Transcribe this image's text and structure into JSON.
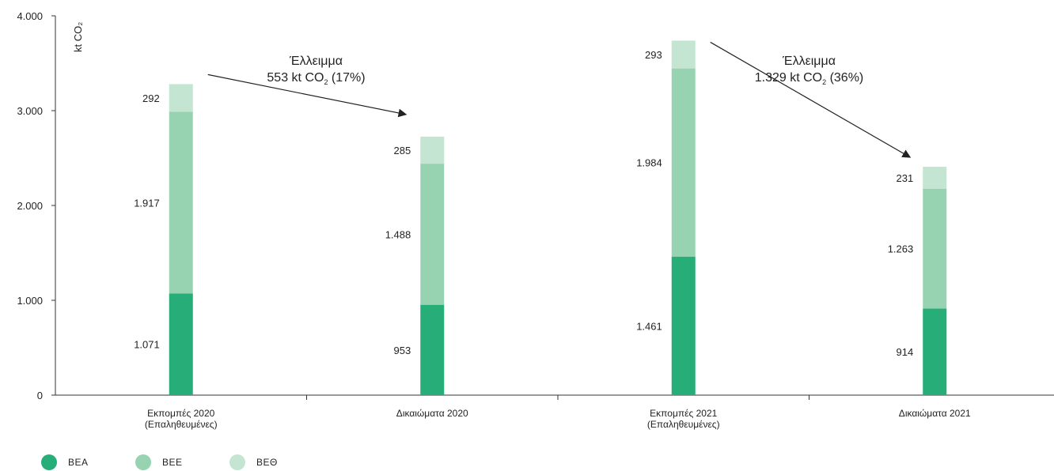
{
  "chart_data": {
    "type": "bar",
    "stacked": true,
    "ylabel": "kt CO₂",
    "ylim": [
      0,
      4000
    ],
    "yticks": [
      "0",
      "1.000",
      "2.000",
      "3.000",
      "4.000"
    ],
    "ytick_values": [
      0,
      1000,
      2000,
      3000,
      4000
    ],
    "categories": [
      [
        "Εκπομπές 2020",
        "(Επαληθευμένες)"
      ],
      [
        "Δικαιώματα 2020"
      ],
      [
        "Εκπομπές 2021",
        "(Επαληθευμένες)"
      ],
      [
        "Δικαιώματα 2021"
      ]
    ],
    "series": [
      {
        "name": "ΒΕΑ",
        "color": "#27ae78",
        "values": [
          1071,
          953,
          1461,
          914
        ],
        "labels": [
          "1.071",
          "953",
          "1.461",
          "914"
        ]
      },
      {
        "name": "ΒΕΕ",
        "color": "#98d3b1",
        "values": [
          1917,
          1488,
          1984,
          1263
        ],
        "labels": [
          "1.917",
          "1.488",
          "1.984",
          "1.263"
        ]
      },
      {
        "name": "ΒΕΘ",
        "color": "#c4e5d1",
        "values": [
          292,
          285,
          293,
          231
        ],
        "labels": [
          "292",
          "285",
          "293",
          "231"
        ]
      }
    ],
    "annotations": [
      {
        "line1": "Έλλειμμα",
        "line2_main": "553 kt CO",
        "line2_sub": "2",
        "line2_tail": " (17%)",
        "from_category": 0,
        "to_category": 1
      },
      {
        "line1": "Έλλειμμα",
        "line2_main": "1.329 kt CO",
        "line2_sub": "2",
        "line2_tail": " (36%)",
        "from_category": 2,
        "to_category": 3
      }
    ],
    "legend_position": "bottom-left",
    "grid": false
  }
}
